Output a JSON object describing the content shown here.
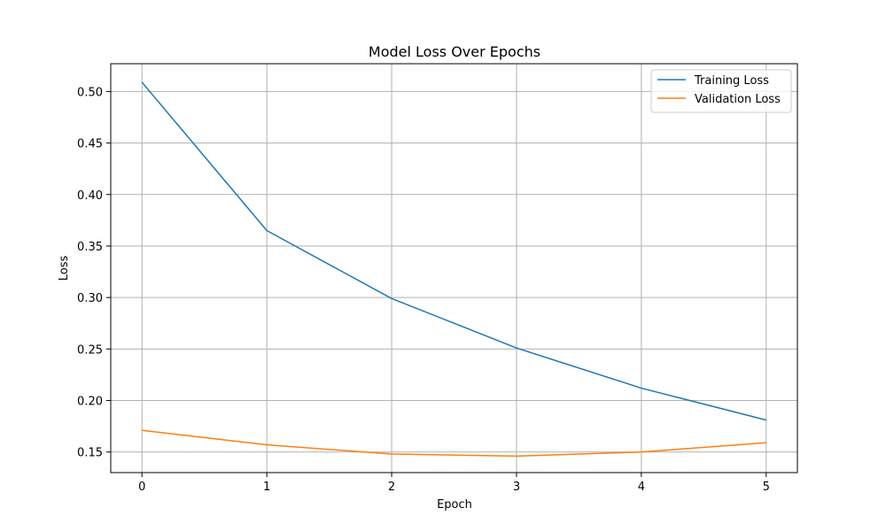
{
  "chart_data": {
    "type": "line",
    "title": "Model Loss Over Epochs",
    "xlabel": "Epoch",
    "ylabel": "Loss",
    "x": [
      0,
      1,
      2,
      3,
      4,
      5
    ],
    "xlim": [
      -0.25,
      5.25
    ],
    "ylim": [
      0.13,
      0.527
    ],
    "xticks": [
      0,
      1,
      2,
      3,
      4,
      5
    ],
    "yticks": [
      0.15,
      0.2,
      0.25,
      0.3,
      0.35,
      0.4,
      0.45,
      0.5
    ],
    "ytick_labels": [
      "0.15",
      "0.20",
      "0.25",
      "0.30",
      "0.35",
      "0.40",
      "0.45",
      "0.50"
    ],
    "grid": true,
    "legend_position": "top-right",
    "series": [
      {
        "name": "Training Loss",
        "color": "#1f77b4",
        "values": [
          0.509,
          0.365,
          0.299,
          0.251,
          0.212,
          0.181
        ]
      },
      {
        "name": "Validation Loss",
        "color": "#ff7f0e",
        "values": [
          0.171,
          0.157,
          0.148,
          0.146,
          0.15,
          0.159
        ]
      }
    ]
  }
}
